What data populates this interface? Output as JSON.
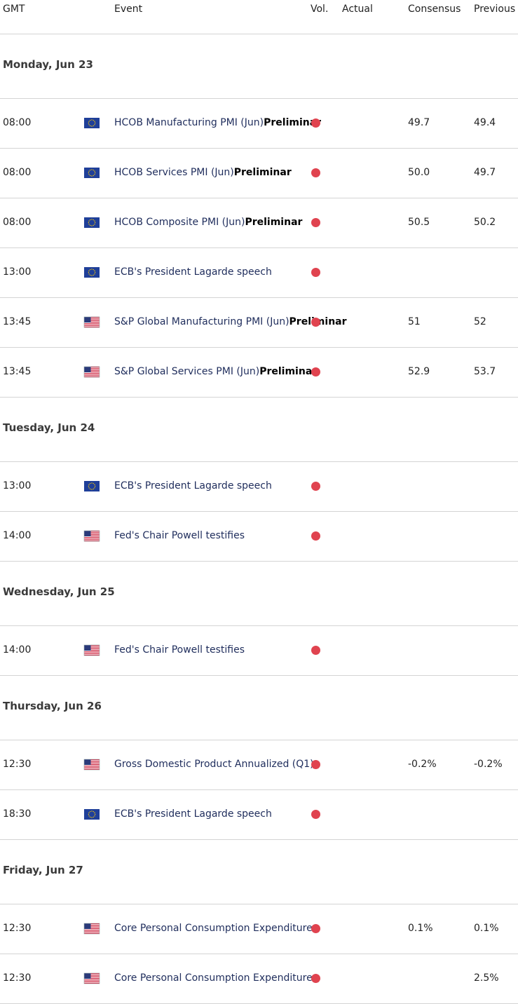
{
  "header": {
    "gmt": "GMT",
    "event": "Event",
    "vol": "Vol.",
    "actual": "Actual",
    "consensus": "Consensus",
    "previous": "Previous"
  },
  "colors": {
    "high_volatility_dot": "#e0434f",
    "event_text": "#1f2d5c",
    "divider": "#d4d4d4"
  },
  "days": [
    {
      "label": "Monday, Jun 23",
      "events": [
        {
          "time": "08:00",
          "flag": "eu-flag-icon",
          "name": "HCOB Manufacturing PMI (Jun)",
          "tag": "Preliminar",
          "actual": "",
          "consensus": "49.7",
          "previous": "49.4"
        },
        {
          "time": "08:00",
          "flag": "eu-flag-icon",
          "name": "HCOB Services PMI (Jun)",
          "tag": "Preliminar",
          "actual": "",
          "consensus": "50.0",
          "previous": "49.7"
        },
        {
          "time": "08:00",
          "flag": "eu-flag-icon",
          "name": "HCOB Composite PMI (Jun)",
          "tag": "Preliminar",
          "actual": "",
          "consensus": "50.5",
          "previous": "50.2"
        },
        {
          "time": "13:00",
          "flag": "eu-flag-icon",
          "name": "ECB's President Lagarde speech",
          "tag": "",
          "actual": "",
          "consensus": "",
          "previous": ""
        },
        {
          "time": "13:45",
          "flag": "us-flag-icon",
          "name": "S&P Global Manufacturing PMI (Jun)",
          "tag": "Preliminar",
          "actual": "",
          "consensus": "51",
          "previous": "52"
        },
        {
          "time": "13:45",
          "flag": "us-flag-icon",
          "name": "S&P Global Services PMI (Jun)",
          "tag": "Preliminar",
          "actual": "",
          "consensus": "52.9",
          "previous": "53.7"
        }
      ]
    },
    {
      "label": "Tuesday, Jun 24",
      "events": [
        {
          "time": "13:00",
          "flag": "eu-flag-icon",
          "name": "ECB's President Lagarde speech",
          "tag": "",
          "actual": "",
          "consensus": "",
          "previous": ""
        },
        {
          "time": "14:00",
          "flag": "us-flag-icon",
          "name": "Fed's Chair Powell testifies",
          "tag": "",
          "actual": "",
          "consensus": "",
          "previous": ""
        }
      ]
    },
    {
      "label": "Wednesday, Jun 25",
      "events": [
        {
          "time": "14:00",
          "flag": "us-flag-icon",
          "name": "Fed's Chair Powell testifies",
          "tag": "",
          "actual": "",
          "consensus": "",
          "previous": ""
        }
      ]
    },
    {
      "label": "Thursday, Jun 26",
      "events": [
        {
          "time": "12:30",
          "flag": "us-flag-icon",
          "name": "Gross Domestic Product Annualized (Q1)",
          "tag": "",
          "actual": "",
          "consensus": "-0.2%",
          "previous": "-0.2%"
        },
        {
          "time": "18:30",
          "flag": "eu-flag-icon",
          "name": "ECB's President Lagarde speech",
          "tag": "",
          "actual": "",
          "consensus": "",
          "previous": ""
        }
      ]
    },
    {
      "label": "Friday, Jun 27",
      "events": [
        {
          "time": "12:30",
          "flag": "us-flag-icon",
          "name": "Core Personal Consumption Expenditure",
          "tag": "",
          "actual": "",
          "consensus": "0.1%",
          "previous": "0.1%"
        },
        {
          "time": "12:30",
          "flag": "us-flag-icon",
          "name": "Core Personal Consumption Expenditure",
          "tag": "",
          "actual": "",
          "consensus": "",
          "previous": "2.5%"
        }
      ]
    }
  ]
}
